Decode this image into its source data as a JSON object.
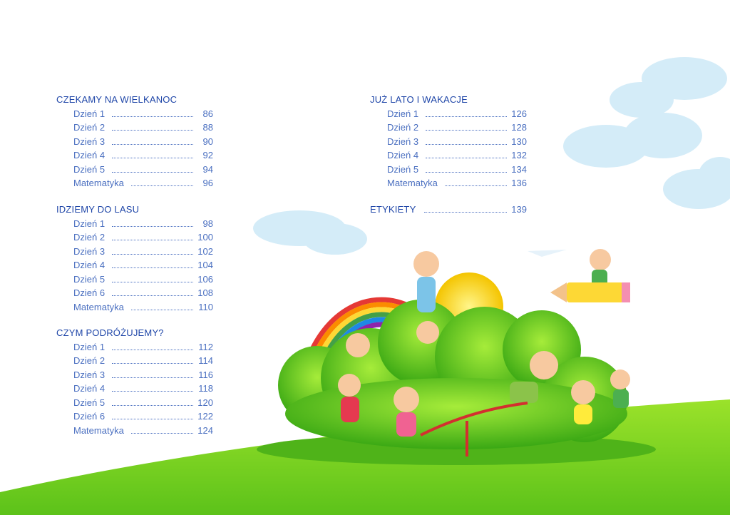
{
  "sections": [
    {
      "title": "CZEKAMY NA WIELKANOC",
      "entries": [
        {
          "label": "Dzień 1",
          "page": 86
        },
        {
          "label": "Dzień 2",
          "page": 88
        },
        {
          "label": "Dzień 3",
          "page": 90
        },
        {
          "label": "Dzień 4",
          "page": 92
        },
        {
          "label": "Dzień 5",
          "page": 94
        },
        {
          "label": "Matematyka",
          "page": 96
        }
      ]
    },
    {
      "title": "IDZIEMY DO LASU",
      "entries": [
        {
          "label": "Dzień 1",
          "page": 98
        },
        {
          "label": "Dzień 2",
          "page": 100
        },
        {
          "label": "Dzień 3",
          "page": 102
        },
        {
          "label": "Dzień 4",
          "page": 104
        },
        {
          "label": "Dzień 5",
          "page": 106
        },
        {
          "label": "Dzień 6",
          "page": 108
        },
        {
          "label": "Matematyka",
          "page": 110
        }
      ]
    },
    {
      "title": "CZYM PODRÓŻUJEMY?",
      "entries": [
        {
          "label": "Dzień 1",
          "page": 112
        },
        {
          "label": "Dzień 2",
          "page": 114
        },
        {
          "label": "Dzień 3",
          "page": 116
        },
        {
          "label": "Dzień 4",
          "page": 118
        },
        {
          "label": "Dzień 5",
          "page": 120
        },
        {
          "label": "Dzień 6",
          "page": 122
        },
        {
          "label": "Matematyka",
          "page": 124
        }
      ]
    },
    {
      "title": "JUŻ LATO I WAKACJE",
      "entries": [
        {
          "label": "Dzień 1",
          "page": 126
        },
        {
          "label": "Dzień 2",
          "page": 128
        },
        {
          "label": "Dzień 3",
          "page": 130
        },
        {
          "label": "Dzień 4",
          "page": 132
        },
        {
          "label": "Dzień 5",
          "page": 134
        },
        {
          "label": "Matematyka",
          "page": 136
        }
      ]
    },
    {
      "title": "ETYKIETY",
      "page": 139
    }
  ]
}
